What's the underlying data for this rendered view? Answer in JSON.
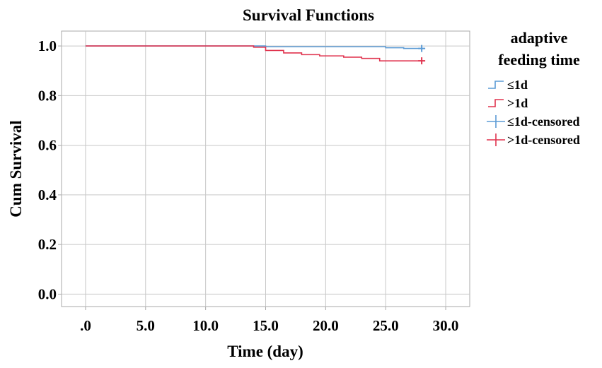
{
  "chart_data": {
    "type": "line",
    "subtype": "kaplan-meier step",
    "title": "Survival Functions",
    "xlabel": "Time (day)",
    "ylabel": "Cum Survival",
    "xlim": [
      -2,
      32
    ],
    "ylim": [
      -0.05,
      1.06
    ],
    "x_ticks": [
      0,
      5,
      10,
      15,
      20,
      25,
      30
    ],
    "x_tick_labels": [
      ".0",
      "5.0",
      "10.0",
      "15.0",
      "20.0",
      "25.0",
      "30.0"
    ],
    "y_ticks": [
      0,
      0.2,
      0.4,
      0.6,
      0.8,
      1.0
    ],
    "y_tick_labels": [
      "0.0",
      "0.2",
      "0.4",
      "0.6",
      "0.8",
      "1.0"
    ],
    "grid": true,
    "legend": {
      "title": "adaptive feeding time",
      "position": "right",
      "entries": [
        "≤1d",
        ">1d",
        "≤1d-censored",
        ">1d-censored"
      ]
    },
    "series": [
      {
        "name": "≤1d",
        "color": "#5b9bd5",
        "steps": [
          [
            0,
            1.0
          ],
          [
            15,
            0.997
          ],
          [
            25,
            0.993
          ],
          [
            26.5,
            0.99
          ],
          [
            28,
            0.99
          ]
        ],
        "censored": [
          [
            28,
            0.99
          ]
        ]
      },
      {
        "name": ">1d",
        "color": "#e0344f",
        "steps": [
          [
            0,
            1.0
          ],
          [
            14,
            0.995
          ],
          [
            15,
            0.982
          ],
          [
            16.5,
            0.972
          ],
          [
            18,
            0.965
          ],
          [
            19.5,
            0.96
          ],
          [
            21.5,
            0.955
          ],
          [
            23,
            0.95
          ],
          [
            24.5,
            0.94
          ],
          [
            28,
            0.94
          ]
        ],
        "censored": [
          [
            28,
            0.94
          ]
        ]
      }
    ]
  }
}
